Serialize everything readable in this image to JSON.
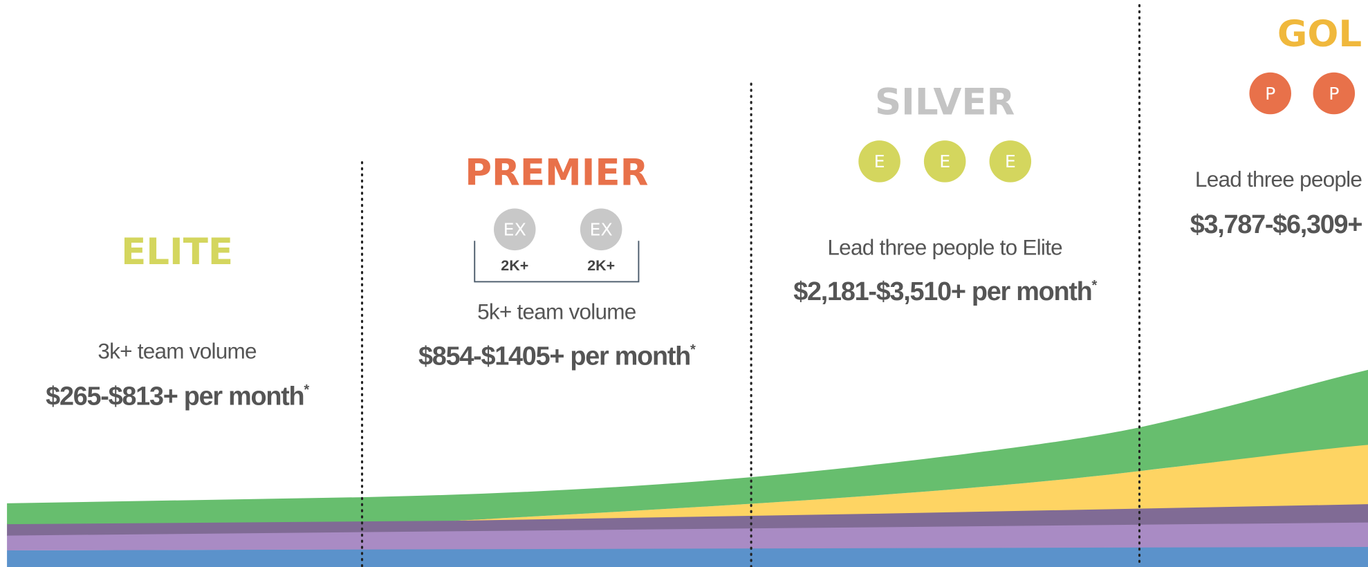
{
  "tiers": [
    {
      "name": "ELITE",
      "color": "#d4d65e",
      "requirement": "3k+ team volume",
      "earnings": "$265-$813+ per month",
      "note": "*"
    },
    {
      "name": "PREMIER",
      "color": "#e8714a",
      "badges": [
        {
          "label": "EX",
          "sub": "2K+"
        },
        {
          "label": "EX",
          "sub": "2K+"
        }
      ],
      "badge_color": "#c8c8c8",
      "requirement": "5k+ team volume",
      "earnings": "$854-$1405+ per month",
      "note": "*"
    },
    {
      "name": "SILVER",
      "color": "#c4c4c4",
      "badges": [
        {
          "label": "E"
        },
        {
          "label": "E"
        },
        {
          "label": "E"
        }
      ],
      "badge_color": "#d4d65e",
      "requirement": "Lead three people to Elite",
      "earnings": "$2,181-$3,510+ per month",
      "note": "*"
    },
    {
      "name": "GOL",
      "color": "#f0b83c",
      "badges": [
        {
          "label": "P"
        },
        {
          "label": "P"
        }
      ],
      "badge_color": "#e8714a",
      "requirement": "Lead three people",
      "earnings": "$3,787-$6,309+"
    }
  ]
}
